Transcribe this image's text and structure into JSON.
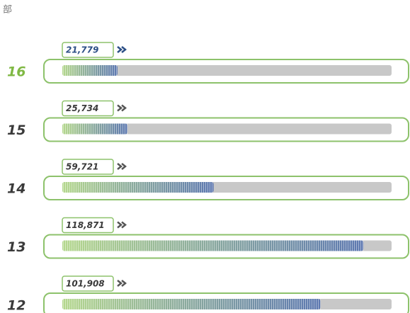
{
  "chart_data": {
    "type": "hbar",
    "subtitle": "部",
    "categories": [
      "16",
      "15",
      "14",
      "13",
      "12"
    ],
    "values": [
      21779,
      25734,
      59721,
      118871,
      101908
    ],
    "value_labels": [
      "21,779",
      "25,734",
      "59,721",
      "118,871",
      "101,908"
    ],
    "xlim": [
      0,
      130000
    ],
    "highlight": "16",
    "colors": {
      "outline": "#8dc26b",
      "track": "#c8c8c8",
      "start": "#b5d88e",
      "end": "#5d78b0",
      "highlight": "#7fb843",
      "text": "#3a3a3a",
      "highlight_text": "#2c4f86"
    }
  }
}
